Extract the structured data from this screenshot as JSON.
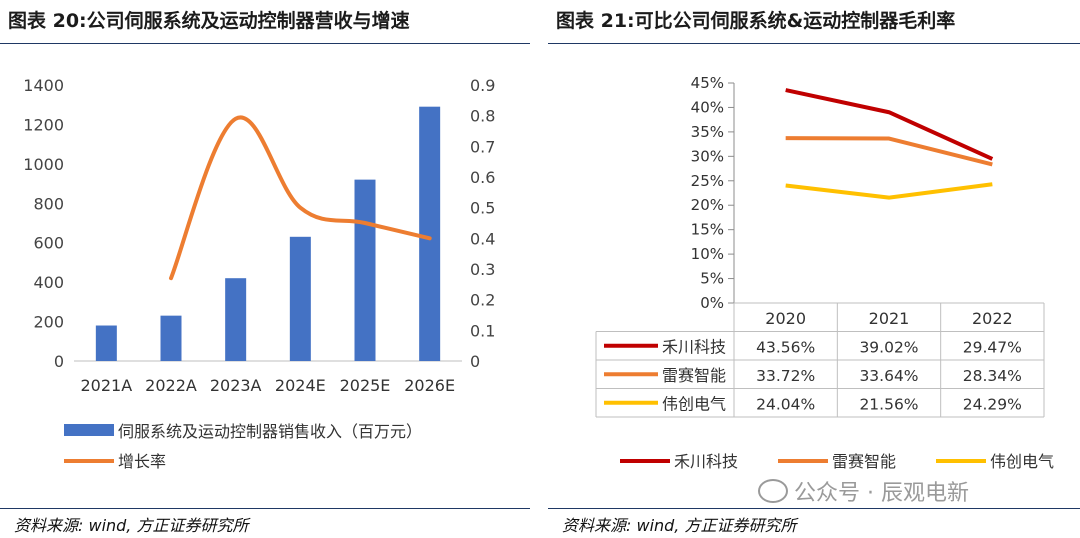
{
  "left": {
    "title": "图表 20:公司伺服系统及运动控制器营收与增速",
    "source": "资料来源: wind, 方正证券研究所",
    "chart_data": {
      "type": "bar",
      "categories": [
        "2021A",
        "2022A",
        "2023A",
        "2024E",
        "2025E",
        "2026E"
      ],
      "series": [
        {
          "name": "伺服系统及运动控制器销售收入（百万元）",
          "type": "bar",
          "axis": "left",
          "color": "#4472c4",
          "values": [
            180,
            230,
            420,
            630,
            920,
            1290
          ]
        },
        {
          "name": "增长率",
          "type": "line",
          "axis": "right",
          "color": "#ed7d31",
          "values": [
            null,
            0.27,
            0.79,
            0.5,
            0.45,
            0.4
          ]
        }
      ],
      "y_ticks": [
        "0",
        "200",
        "400",
        "600",
        "800",
        "1000",
        "1200",
        "1400"
      ],
      "y2_ticks": [
        "0",
        "0.1",
        "0.2",
        "0.3",
        "0.4",
        "0.5",
        "0.6",
        "0.7",
        "0.8",
        "0.9"
      ],
      "ylim": [
        0,
        1400
      ],
      "y2lim": [
        0,
        0.9
      ],
      "legend_position": "bottom"
    }
  },
  "right": {
    "title": "图表 21:可比公司伺服系统&运动控制器毛利率",
    "source": "资料来源: wind, 方正证券研究所",
    "chart_data": {
      "type": "line",
      "categories": [
        "2020",
        "2021",
        "2022"
      ],
      "y_ticks": [
        "0%",
        "5%",
        "10%",
        "15%",
        "20%",
        "25%",
        "30%",
        "35%",
        "40%",
        "45%"
      ],
      "ylim": [
        0,
        45
      ],
      "series": [
        {
          "name": "禾川科技",
          "color": "#c00000",
          "values": [
            43.56,
            39.02,
            29.47
          ],
          "labels": [
            "43.56%",
            "39.02%",
            "29.47%"
          ]
        },
        {
          "name": "雷赛智能",
          "color": "#ed7d31",
          "values": [
            33.72,
            33.64,
            28.34
          ],
          "labels": [
            "33.72%",
            "33.64%",
            "28.34%"
          ]
        },
        {
          "name": "伟创电气",
          "color": "#ffc000",
          "values": [
            24.04,
            21.56,
            24.29
          ],
          "labels": [
            "24.04%",
            "21.56%",
            "24.29%"
          ]
        }
      ],
      "legend_position": "bottom"
    }
  },
  "watermark": "公众号 · 辰观电新"
}
